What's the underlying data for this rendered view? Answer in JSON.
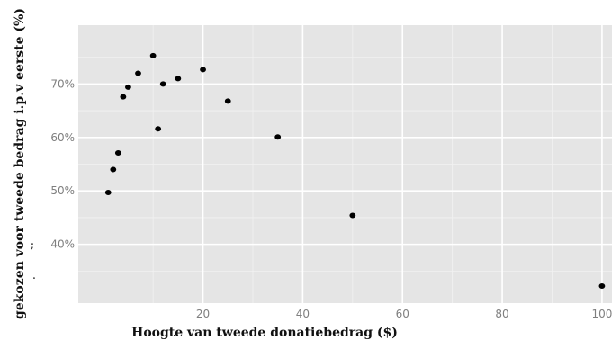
{
  "chart_data": {
    "type": "scatter",
    "title": "",
    "xlabel": "Hoogte van tweede donatiebedrag ($)",
    "ylabel": "gekozen voor tweede bedrag i.p.v eerste (%)",
    "xlim": [
      -5,
      102
    ],
    "ylim": [
      29,
      81
    ],
    "grid": true,
    "x_ticks": [
      {
        "value": 20,
        "label": "20"
      },
      {
        "value": 40,
        "label": "40"
      },
      {
        "value": 60,
        "label": "60"
      },
      {
        "value": 80,
        "label": "80"
      },
      {
        "value": 100,
        "label": "100"
      }
    ],
    "y_ticks": [
      {
        "value": 40,
        "label": "40%"
      },
      {
        "value": 50,
        "label": "50%"
      },
      {
        "value": 60,
        "label": "60%"
      },
      {
        "value": 70,
        "label": "70%"
      }
    ],
    "stray_marks": [
      ";",
      "."
    ],
    "points": [
      {
        "x": 1,
        "y": 49.7
      },
      {
        "x": 2,
        "y": 54.0
      },
      {
        "x": 3,
        "y": 57.1
      },
      {
        "x": 4,
        "y": 67.6
      },
      {
        "x": 5,
        "y": 69.4
      },
      {
        "x": 7,
        "y": 72.0
      },
      {
        "x": 10,
        "y": 75.3
      },
      {
        "x": 11,
        "y": 61.6
      },
      {
        "x": 12,
        "y": 70.0
      },
      {
        "x": 15,
        "y": 71.0
      },
      {
        "x": 20,
        "y": 72.7
      },
      {
        "x": 25,
        "y": 66.8
      },
      {
        "x": 35,
        "y": 60.1
      },
      {
        "x": 50,
        "y": 45.4
      },
      {
        "x": 100,
        "y": 32.2
      }
    ],
    "colors": {
      "panel": "#e5e5e5",
      "grid_major": "#ffffff",
      "grid_minor": "#f2f2f2",
      "point": "#000000"
    }
  }
}
